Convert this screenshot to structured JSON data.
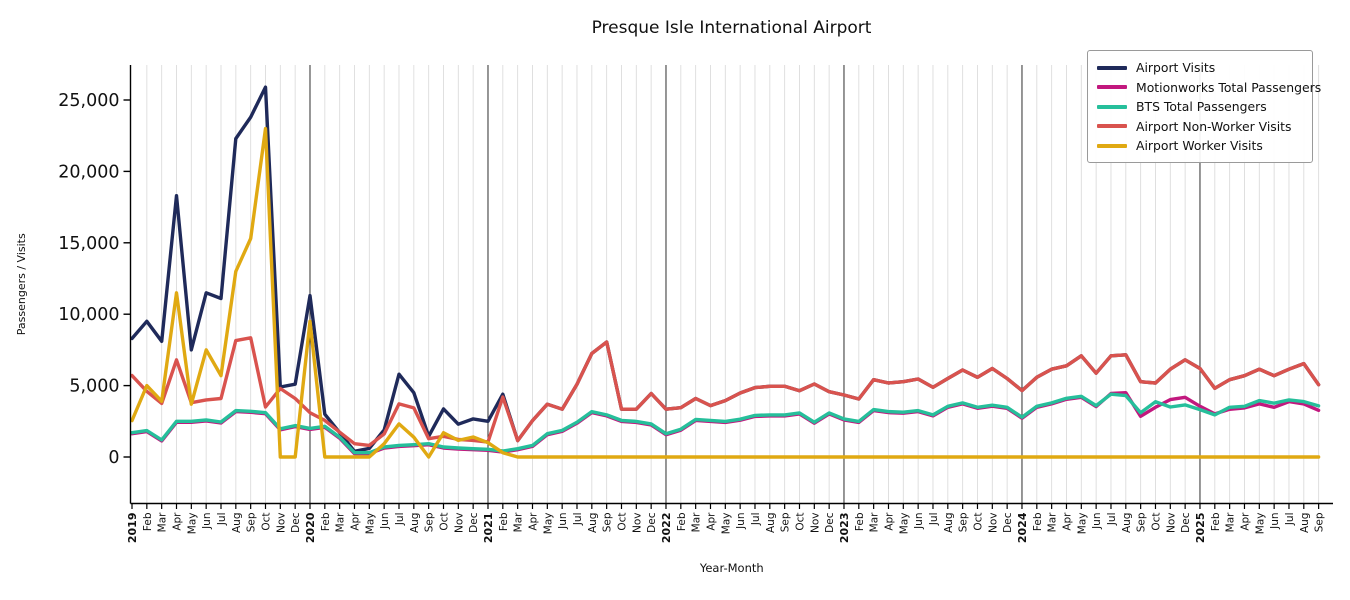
{
  "header": {
    "title": "Presque Isle International Airport"
  },
  "axes": {
    "xlabel": "Year-Month",
    "ylabel": "Passengers / Visits",
    "ytick_labels": [
      "0",
      "5,000",
      "10,000",
      "15,000",
      "20,000",
      "25,000"
    ],
    "ytick_values": [
      0,
      5000,
      10000,
      15000,
      20000,
      25000
    ]
  },
  "chart_data": {
    "type": "line",
    "title": "Presque Isle International Airport",
    "xlabel": "Year-Month",
    "ylabel": "Passengers / Visits",
    "ylim": [
      0,
      27500
    ],
    "grid": "vertical-monthly, dark line at each January",
    "legend_position": "upper right",
    "x_labels": [
      "2019",
      "Feb",
      "Mar",
      "Apr",
      "May",
      "Jun",
      "Jul",
      "Aug",
      "Sep",
      "Oct",
      "Nov",
      "Dec",
      "2020",
      "Feb",
      "Mar",
      "Apr",
      "May",
      "Jun",
      "Jul",
      "Aug",
      "Sep",
      "Oct",
      "Nov",
      "Dec",
      "2021",
      "Feb",
      "Mar",
      "Apr",
      "May",
      "Jun",
      "Jul",
      "Aug",
      "Sep",
      "Oct",
      "Nov",
      "Dec",
      "2022",
      "Feb",
      "Mar",
      "Apr",
      "May",
      "Jun",
      "Jul",
      "Aug",
      "Sep",
      "Oct",
      "Nov",
      "Dec",
      "2023",
      "Feb",
      "Mar",
      "Apr",
      "May",
      "Jun",
      "Jul",
      "Aug",
      "Sep",
      "Oct",
      "Nov",
      "Dec",
      "2024",
      "Feb",
      "Mar",
      "Apr",
      "May",
      "Jun",
      "Jul",
      "Aug",
      "Sep",
      "Oct",
      "Nov",
      "Dec",
      "2025",
      "Feb",
      "Mar",
      "Apr",
      "May",
      "Jun",
      "Jul",
      "Aug",
      "Sep"
    ],
    "series": [
      {
        "name": "Airport Visits",
        "color": "#1f2a5a",
        "values": [
          8300,
          9500,
          8100,
          18300,
          7500,
          11500,
          11100,
          22300,
          23800,
          25900,
          4900,
          5100,
          11300,
          3000,
          1700,
          400,
          600,
          1900,
          5800,
          4500,
          1450,
          3370,
          2300,
          2670,
          2500,
          4400,
          1150,
          2550,
          3700,
          3350,
          5100,
          7250,
          8050,
          3350,
          3350,
          4450,
          3350,
          3450,
          4100,
          3600,
          3950,
          4480,
          4860,
          4950,
          4950,
          4640,
          5110,
          4570,
          4340,
          4060,
          5410,
          5180,
          5270,
          5460,
          4880,
          5500,
          6090,
          5580,
          6200,
          5500,
          4650,
          5580,
          6150,
          6390,
          7090,
          5870,
          7090,
          7160,
          5270,
          5180,
          6150,
          6810,
          6200,
          4810,
          5410,
          5690,
          6150,
          5690,
          6150,
          6540,
          5060
        ]
      },
      {
        "name": "Motionworks Total Passengers",
        "color": "#c2187e",
        "values": [
          1630,
          1780,
          1130,
          2430,
          2430,
          2530,
          2380,
          3180,
          3130,
          3030,
          1905,
          2130,
          1930,
          2080,
          1320,
          230,
          230,
          630,
          745,
          790,
          860,
          630,
          560,
          510,
          470,
          350,
          510,
          740,
          1560,
          1790,
          2370,
          3110,
          2880,
          2490,
          2420,
          2250,
          1560,
          1880,
          2560,
          2490,
          2420,
          2580,
          2840,
          2880,
          2880,
          3020,
          2370,
          3020,
          2600,
          2420,
          3250,
          3110,
          3070,
          3180,
          2880,
          3480,
          3720,
          3410,
          3560,
          3410,
          2720,
          3480,
          3720,
          4040,
          4180,
          3530,
          4450,
          4500,
          2850,
          3480,
          4020,
          4180,
          3550,
          3020,
          3340,
          3440,
          3720,
          3480,
          3880,
          3720,
          3270
        ]
      },
      {
        "name": "BTS Total Passengers",
        "color": "#26bf9b",
        "values": [
          1700,
          1850,
          1200,
          2500,
          2500,
          2600,
          2450,
          3250,
          3200,
          3100,
          1975,
          2200,
          2000,
          2150,
          1390,
          300,
          300,
          700,
          815,
          860,
          930,
          700,
          630,
          580,
          540,
          420,
          580,
          810,
          1630,
          1860,
          2440,
          3180,
          2950,
          2560,
          2490,
          2320,
          1630,
          1950,
          2630,
          2560,
          2490,
          2650,
          2910,
          2950,
          2950,
          3090,
          2440,
          3090,
          2670,
          2490,
          3320,
          3180,
          3140,
          3250,
          2950,
          3550,
          3790,
          3480,
          3630,
          3480,
          2790,
          3550,
          3790,
          4110,
          4250,
          3600,
          4400,
          4300,
          3100,
          3870,
          3500,
          3650,
          3320,
          2950,
          3480,
          3550,
          3950,
          3770,
          4000,
          3880,
          3580
        ]
      },
      {
        "name": "Airport Non-Worker Visits",
        "color": "#d9534e",
        "values": [
          5700,
          4600,
          3750,
          6800,
          3800,
          4000,
          4100,
          8150,
          8350,
          3500,
          4800,
          4100,
          3100,
          2560,
          1740,
          930,
          810,
          1620,
          3720,
          3440,
          1280,
          1450,
          1230,
          1160,
          1050,
          4200,
          1150,
          2550,
          3700,
          3350,
          5100,
          7250,
          8050,
          3350,
          3350,
          4450,
          3350,
          3450,
          4100,
          3600,
          3950,
          4480,
          4860,
          4950,
          4950,
          4640,
          5110,
          4570,
          4340,
          4060,
          5410,
          5180,
          5270,
          5460,
          4880,
          5500,
          6090,
          5580,
          6200,
          5500,
          4650,
          5580,
          6150,
          6390,
          7090,
          5870,
          7090,
          7160,
          5270,
          5180,
          6150,
          6810,
          6200,
          4810,
          5410,
          5690,
          6150,
          5690,
          6150,
          6540,
          5060
        ]
      },
      {
        "name": "Airport Worker Visits",
        "color": "#e0a912",
        "values": [
          2550,
          5000,
          3900,
          11500,
          3700,
          7500,
          5700,
          13000,
          15300,
          23000,
          0,
          0,
          9500,
          0,
          0,
          0,
          0,
          930,
          2320,
          1390,
          0,
          1700,
          1160,
          1400,
          1000,
          300,
          0,
          0,
          0,
          0,
          0,
          0,
          0,
          0,
          0,
          0,
          0,
          0,
          0,
          0,
          0,
          0,
          0,
          0,
          0,
          0,
          0,
          0,
          0,
          0,
          0,
          0,
          0,
          0,
          0,
          0,
          0,
          0,
          0,
          0,
          0,
          0,
          0,
          0,
          0,
          0,
          0,
          0,
          0,
          0,
          0,
          0,
          0,
          0,
          0,
          0,
          0,
          0,
          0,
          0,
          0
        ]
      }
    ]
  }
}
